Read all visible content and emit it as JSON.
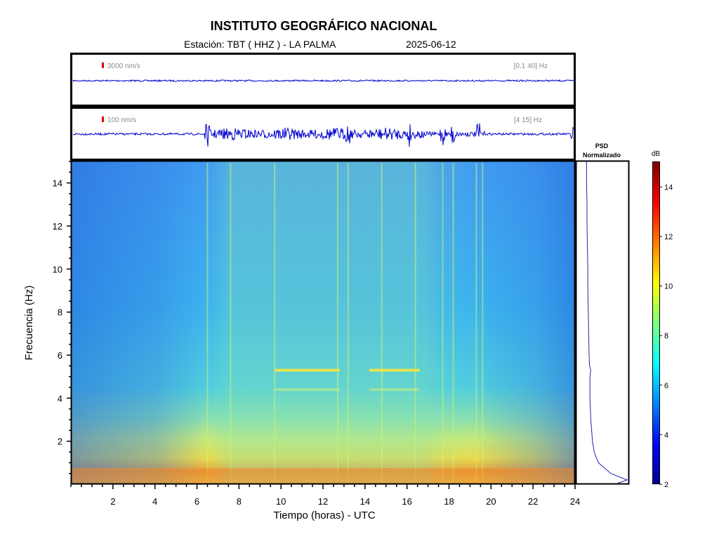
{
  "header": {
    "title": "INSTITUTO GEOGRÁFICO NACIONAL",
    "station": "Estación:  TBT ( HHZ ) - LA PALMA",
    "date": "2025-06-12"
  },
  "colors": {
    "trace": "#0000cc",
    "scale_marker": "#dd0000",
    "axis": "#000000"
  },
  "chart_data": [
    {
      "type": "line",
      "name": "seismogram-broadband",
      "scale_label": "3000 nm/s",
      "band_label": "[0.1 40] Hz",
      "xlim": [
        0,
        24
      ],
      "description_level": "low-amplitude constant noise"
    },
    {
      "type": "line",
      "name": "seismogram-filtered",
      "scale_label": "100 nm/s",
      "band_label": "[4 15] Hz",
      "xlim": [
        0,
        24
      ],
      "bursts_hours": [
        6.5,
        13.2,
        16.1,
        17.7,
        18.2,
        19.4,
        23.9
      ]
    },
    {
      "type": "heatmap",
      "name": "spectrogram",
      "xlabel": "Tiempo (horas) - UTC",
      "ylabel": "Frecuencia  (Hz)",
      "xlim": [
        0,
        24
      ],
      "ylim": [
        0,
        15
      ],
      "xticks": [
        2,
        4,
        6,
        8,
        10,
        12,
        14,
        16,
        18,
        20,
        22,
        24
      ],
      "yticks": [
        2,
        4,
        6,
        8,
        10,
        12,
        14
      ],
      "colorbar": {
        "label": "dB",
        "range": [
          2,
          15
        ],
        "ticks": [
          2,
          4,
          6,
          8,
          10,
          12,
          14
        ]
      },
      "vertical_lines_hours": [
        6.5,
        7.6,
        9.7,
        12.7,
        13.2,
        14.8,
        16.4,
        17.7,
        18.2,
        19.3,
        19.6
      ],
      "horizontal_bands_hz": [
        5.3,
        4.4
      ]
    },
    {
      "type": "line",
      "name": "psd-normalized",
      "title": "PSD Normalizado",
      "ylim": [
        0,
        15
      ],
      "freq": [
        0.05,
        0.2,
        0.5,
        1.0,
        1.5,
        2.0,
        2.5,
        3.0,
        3.5,
        4.0,
        4.5,
        5.0,
        5.3,
        5.5,
        6.0,
        7.0,
        8.0,
        9.0,
        10.0,
        11.0,
        12.0,
        13.0,
        14.0,
        15.0
      ],
      "psd": [
        0.78,
        1.0,
        0.62,
        0.32,
        0.22,
        0.18,
        0.16,
        0.14,
        0.13,
        0.12,
        0.12,
        0.12,
        0.14,
        0.11,
        0.1,
        0.09,
        0.08,
        0.07,
        0.07,
        0.06,
        0.05,
        0.05,
        0.04,
        0.04
      ]
    }
  ]
}
